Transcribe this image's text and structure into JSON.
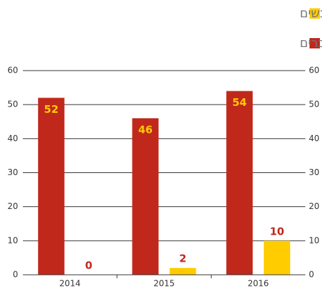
{
  "chart_data": {
    "type": "bar",
    "categories": [
      "2014",
      "2015",
      "2016"
    ],
    "series": [
      {
        "name": "גברים",
        "color": "#c1281c",
        "values": [
          52,
          46,
          54
        ]
      },
      {
        "name": "נשים",
        "color": "#ffcc00",
        "values": [
          0,
          2,
          10
        ]
      }
    ],
    "ylim": [
      0,
      60
    ],
    "yticks": [
      0,
      10,
      20,
      30,
      40,
      50,
      60
    ],
    "y2lim": [
      0,
      60
    ],
    "y2ticks": [
      0,
      10,
      20,
      30,
      40,
      50,
      60
    ],
    "grid": true,
    "legend": "top-right"
  }
}
